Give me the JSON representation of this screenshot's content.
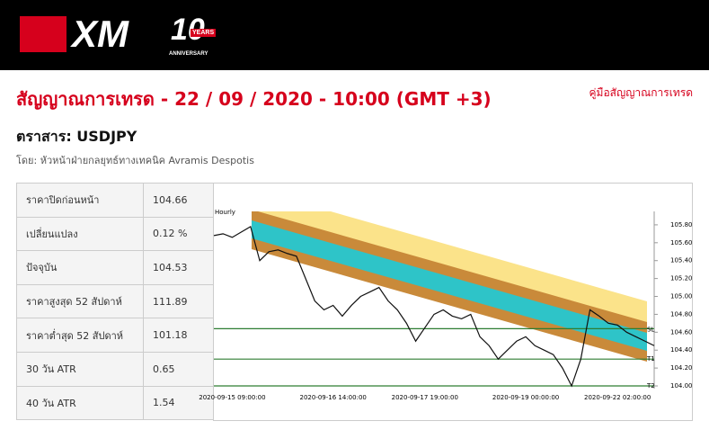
{
  "header": {
    "logo": "XM",
    "badge": "10",
    "badge_top": "YEARS",
    "badge_bottom": "ANNIVERSARY"
  },
  "title": "สัญญาณการเทรด - 22 / 09 / 2020 - 10:00 (GMT +3)",
  "guide_link": "คู่มือสัญญาณการเทรด",
  "instrument": "ตราสาร: USDJPY",
  "author": "โดย: หัวหน้าฝ่ายกลยุทธ์ทางเทคนิค Avramis Despotis",
  "table": {
    "rows": [
      [
        "ราคาปิดก่อนหน้า",
        "104.66"
      ],
      [
        "เปลี่ยนแปลง",
        "0.12 %"
      ],
      [
        "ปัจจุบัน",
        "104.53"
      ],
      [
        "ราคาสูงสุด 52 สัปดาห์",
        "111.89"
      ],
      [
        "ราคาต่ำสุด 52 สัปดาห์",
        "101.18"
      ],
      [
        "30 วัน ATR",
        "0.65"
      ],
      [
        "40 วัน ATR",
        "1.54"
      ]
    ]
  },
  "chart_data": {
    "type": "line",
    "title": "Hourly",
    "color": "#111111",
    "categories": [
      null,
      null,
      "2020-09-15 09:00:00",
      null,
      null,
      null,
      null,
      null,
      null,
      null,
      null,
      null,
      null,
      "2020-09-16 14:00:00",
      null,
      null,
      null,
      null,
      null,
      null,
      null,
      null,
      null,
      "2020-09-17 19:00:00",
      null,
      null,
      null,
      null,
      null,
      null,
      null,
      null,
      null,
      null,
      "2020-09-19 00:00:00",
      null,
      null,
      null,
      null,
      null,
      null,
      null,
      null,
      null,
      "2020-09-22 02:00:00",
      null,
      null,
      null,
      null
    ],
    "series": [
      {
        "name": "USDJPY",
        "color": "#111111",
        "values": [
          105.68,
          105.7,
          105.66,
          105.72,
          105.78,
          105.4,
          105.5,
          105.52,
          105.48,
          105.45,
          105.2,
          104.95,
          104.85,
          104.9,
          104.78,
          104.9,
          105.0,
          105.05,
          105.1,
          104.95,
          104.85,
          104.7,
          104.5,
          104.65,
          104.8,
          104.85,
          104.78,
          104.75,
          104.8,
          104.55,
          104.45,
          104.3,
          104.4,
          104.5,
          104.55,
          104.45,
          104.4,
          104.35,
          104.2,
          104.0,
          104.3,
          104.85,
          104.78,
          104.7,
          104.68,
          104.6,
          104.55,
          104.5,
          104.45
        ]
      }
    ],
    "ylim": [
      103.97,
      105.95
    ],
    "yticks": [
      {
        "value": 104,
        "label": "104.00"
      },
      {
        "value": 104.2,
        "label": "104.20"
      },
      {
        "value": 104.4,
        "label": "104.40"
      },
      {
        "value": 104.6,
        "label": "104.60"
      },
      {
        "value": 104.8,
        "label": "104.80"
      },
      {
        "value": 105,
        "label": "105.00"
      },
      {
        "value": 105.2,
        "label": "105.20"
      },
      {
        "value": 105.4,
        "label": "105.40"
      },
      {
        "value": 105.6,
        "label": "105.60"
      },
      {
        "value": 105.8,
        "label": "105.80"
      }
    ],
    "levels": [
      {
        "label": "SL",
        "value": 104.64,
        "color": "#2e7d32"
      },
      {
        "label": "T1",
        "value": 104.3,
        "color": "#2e7d32"
      },
      {
        "label": "T2",
        "value": 104.0,
        "color": "#2e7d32"
      }
    ]
  }
}
